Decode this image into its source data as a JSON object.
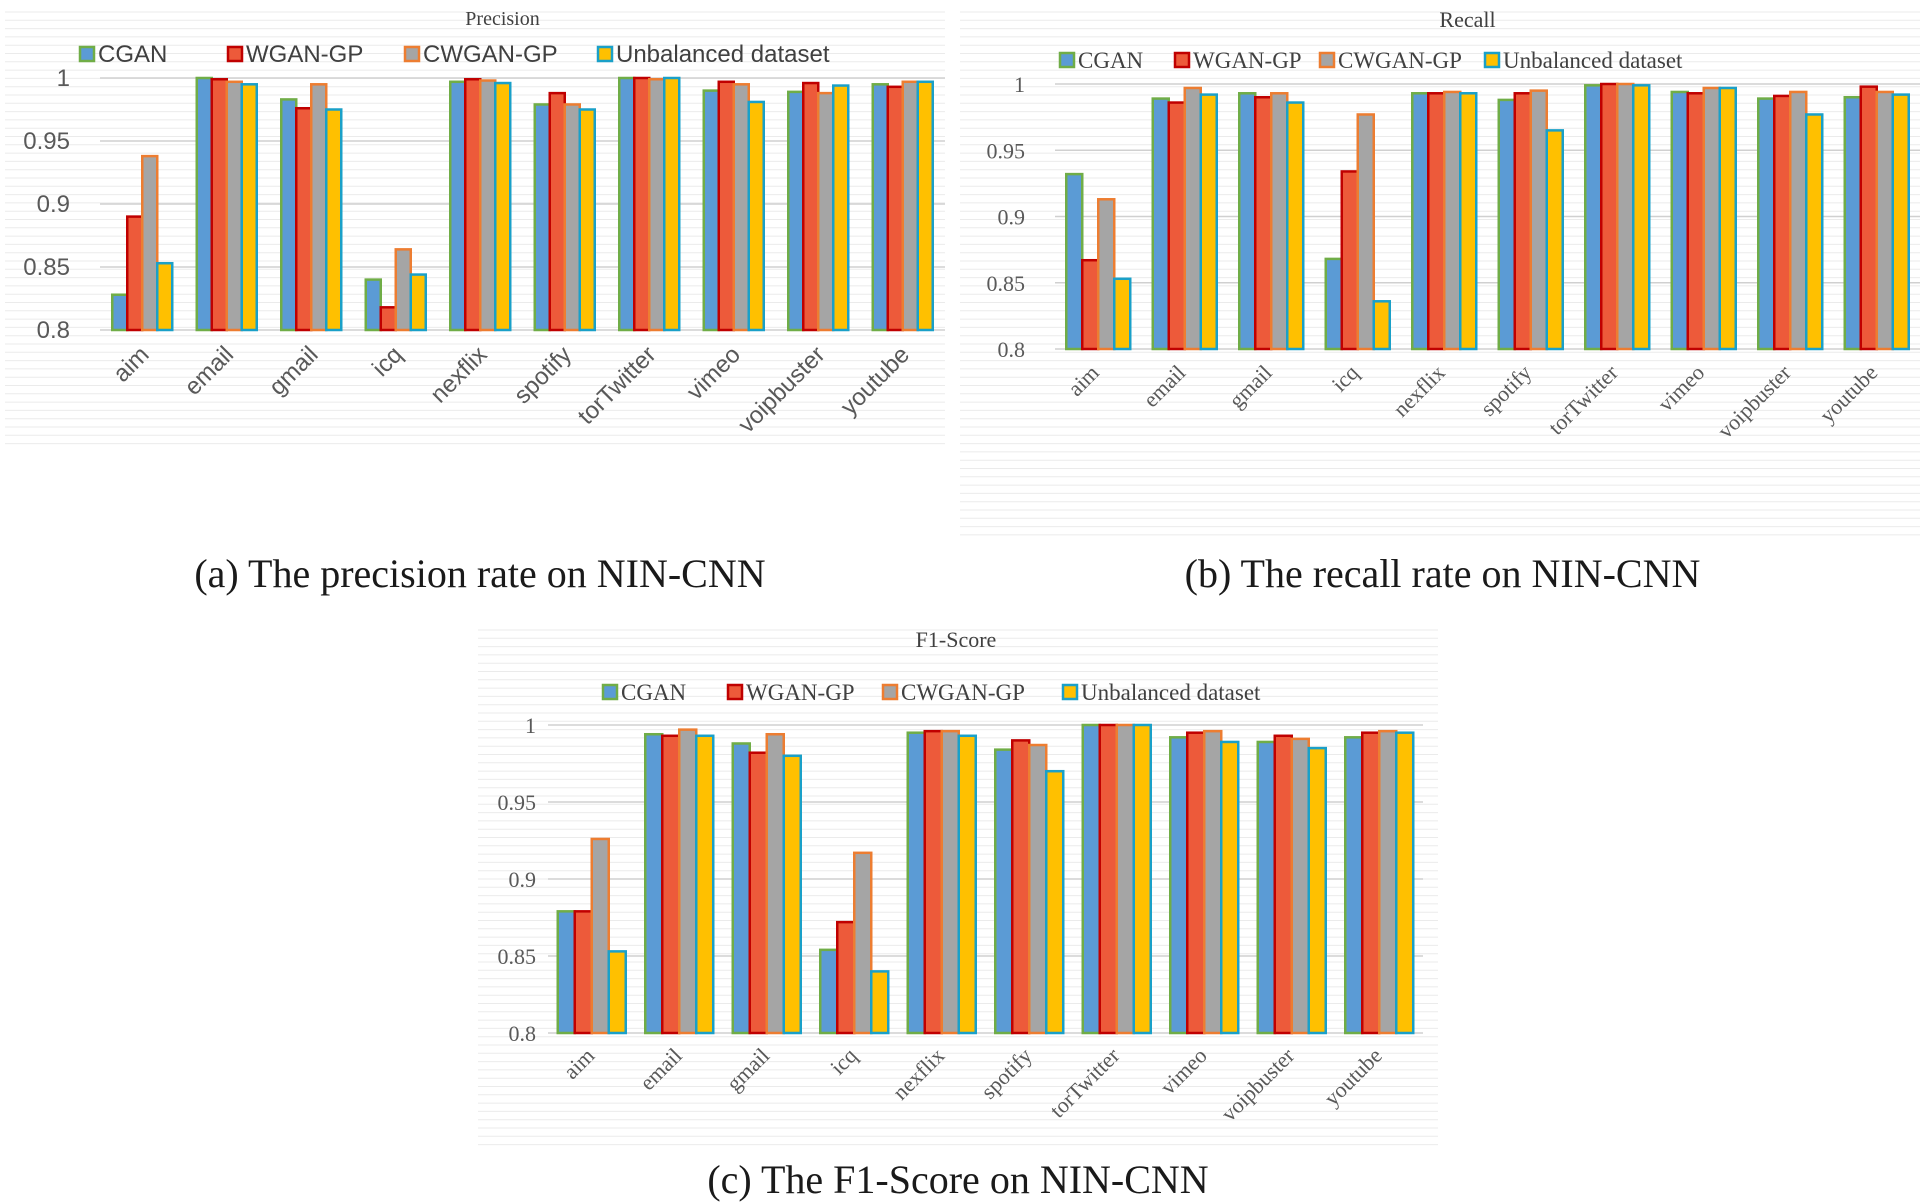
{
  "colors": {
    "CGAN": "#5b9bd5",
    "WGAN-GP": "#ed5a3a",
    "CWGAN-GP": "#a5a5a5",
    "Unbalanced dataset": "#ffc000",
    "CGAN_border": "#70ad47",
    "WGAN-GP_border": "#c00000",
    "CWGAN-GP_border": "#ed7d31",
    "Unbalanced dataset_border": "#1aa0c8"
  },
  "captions": {
    "a": "(a) The precision rate on NIN-CNN",
    "b": "(b) The recall rate on NIN-CNN",
    "c": "(c) The F1-Score on NIN-CNN"
  },
  "chart_data": [
    {
      "type": "bar",
      "title": "Precision",
      "ylim": [
        0.8,
        1.0
      ],
      "yticks": [
        "0.8",
        "0.85",
        "0.9",
        "0.95",
        "1"
      ],
      "legend": "top",
      "grid": true,
      "categories": [
        "aim",
        "email",
        "gmail",
        "icq",
        "nexflix",
        "spotify",
        "torTwitter",
        "vimeo",
        "voipbuster",
        "youtube"
      ],
      "series": [
        {
          "name": "CGAN",
          "values": [
            0.828,
            1.0,
            0.983,
            0.84,
            0.997,
            0.979,
            1.0,
            0.99,
            0.989,
            0.995
          ]
        },
        {
          "name": "WGAN-GP",
          "values": [
            0.89,
            0.999,
            0.976,
            0.818,
            0.999,
            0.988,
            1.0,
            0.997,
            0.996,
            0.993
          ]
        },
        {
          "name": "CWGAN-GP",
          "values": [
            0.938,
            0.997,
            0.995,
            0.864,
            0.998,
            0.979,
            0.999,
            0.995,
            0.988,
            0.997
          ]
        },
        {
          "name": "Unbalanced dataset",
          "values": [
            0.853,
            0.995,
            0.975,
            0.844,
            0.996,
            0.975,
            1.0,
            0.981,
            0.994,
            0.997
          ]
        }
      ]
    },
    {
      "type": "bar",
      "title": "Recall",
      "ylim": [
        0.8,
        1.0
      ],
      "yticks": [
        "0.8",
        "0.85",
        "0.9",
        "0.95",
        "1"
      ],
      "legend": "top",
      "grid": true,
      "categories": [
        "aim",
        "email",
        "gmail",
        "icq",
        "nexflix",
        "spotify",
        "torTwitter",
        "vimeo",
        "voipbuster",
        "youtube"
      ],
      "series": [
        {
          "name": "CGAN",
          "values": [
            0.932,
            0.989,
            0.993,
            0.868,
            0.993,
            0.988,
            0.999,
            0.994,
            0.989,
            0.99
          ]
        },
        {
          "name": "WGAN-GP",
          "values": [
            0.867,
            0.986,
            0.99,
            0.934,
            0.993,
            0.993,
            1.0,
            0.993,
            0.991,
            0.998
          ]
        },
        {
          "name": "CWGAN-GP",
          "values": [
            0.913,
            0.997,
            0.993,
            0.977,
            0.994,
            0.995,
            1.0,
            0.997,
            0.994,
            0.994
          ]
        },
        {
          "name": "Unbalanced dataset",
          "values": [
            0.853,
            0.992,
            0.986,
            0.836,
            0.993,
            0.965,
            0.999,
            0.997,
            0.977,
            0.992
          ]
        }
      ]
    },
    {
      "type": "bar",
      "title": "F1-Score",
      "ylim": [
        0.8,
        1.0
      ],
      "yticks": [
        "0.8",
        "0.85",
        "0.9",
        "0.95",
        "1"
      ],
      "legend": "top",
      "grid": true,
      "categories": [
        "aim",
        "email",
        "gmail",
        "icq",
        "nexflix",
        "spotify",
        "torTwitter",
        "vimeo",
        "voipbuster",
        "youtube"
      ],
      "series": [
        {
          "name": "CGAN",
          "values": [
            0.879,
            0.994,
            0.988,
            0.854,
            0.995,
            0.984,
            1.0,
            0.992,
            0.989,
            0.992
          ]
        },
        {
          "name": "WGAN-GP",
          "values": [
            0.879,
            0.993,
            0.982,
            0.872,
            0.996,
            0.99,
            1.0,
            0.995,
            0.993,
            0.995
          ]
        },
        {
          "name": "CWGAN-GP",
          "values": [
            0.926,
            0.997,
            0.994,
            0.917,
            0.996,
            0.987,
            1.0,
            0.996,
            0.991,
            0.996
          ]
        },
        {
          "name": "Unbalanced dataset",
          "values": [
            0.853,
            0.993,
            0.98,
            0.84,
            0.993,
            0.97,
            1.0,
            0.989,
            0.985,
            0.995
          ]
        }
      ]
    }
  ]
}
